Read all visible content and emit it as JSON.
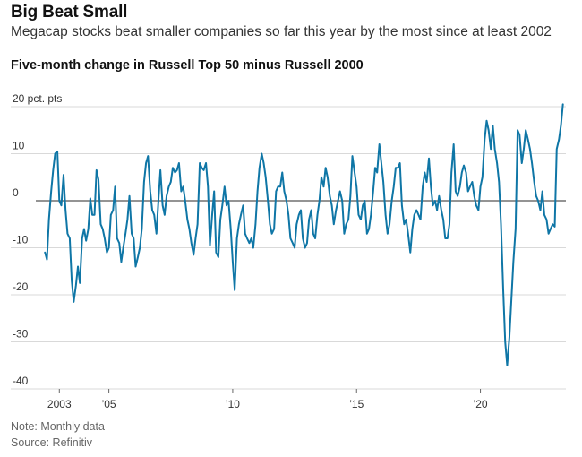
{
  "header": {
    "title": "Big Beat Small",
    "subtitle": "Megacap stocks beat smaller companies so far this year by the most since at least 2002"
  },
  "chart_title": "Five-month change in Russell Top 50 minus Russell 2000",
  "notes": {
    "note": "Note: Monthly data",
    "source": "Source: Refinitiv"
  },
  "colors": {
    "line": "#0f76a6",
    "grid": "#d9d9d9",
    "zero_line": "#555555"
  },
  "chart_data": {
    "type": "line",
    "title": "Five-month change in Russell Top 50 minus Russell 2000",
    "xlabel": "",
    "ylabel": "",
    "xlim": [
      2002.05,
      2023.45
    ],
    "ylim": [
      -40,
      20
    ],
    "grid": true,
    "y_ticks": [
      {
        "value": 20,
        "label": "20 pct. pts"
      },
      {
        "value": 10,
        "label": "10"
      },
      {
        "value": 0,
        "label": "0"
      },
      {
        "value": -10,
        "label": "-10"
      },
      {
        "value": -20,
        "label": "-20"
      },
      {
        "value": -30,
        "label": "-30"
      },
      {
        "value": -40,
        "label": "-40"
      }
    ],
    "x_ticks": [
      {
        "value": 2003,
        "label": "2003"
      },
      {
        "value": 2005,
        "label": "’05"
      },
      {
        "value": 2010,
        "label": "’10"
      },
      {
        "value": 2015,
        "label": "’15"
      },
      {
        "value": 2020,
        "label": "’20"
      }
    ],
    "series": [
      {
        "points": [
          [
            2002.42,
            -11
          ],
          [
            2002.5,
            -12.5
          ],
          [
            2002.58,
            -4
          ],
          [
            2002.67,
            2
          ],
          [
            2002.75,
            6.5
          ],
          [
            2002.83,
            10
          ],
          [
            2002.92,
            10.5
          ],
          [
            2003.0,
            0
          ],
          [
            2003.08,
            -1
          ],
          [
            2003.17,
            5.5
          ],
          [
            2003.25,
            -2
          ],
          [
            2003.33,
            -7
          ],
          [
            2003.42,
            -8
          ],
          [
            2003.5,
            -17
          ],
          [
            2003.58,
            -21.5
          ],
          [
            2003.67,
            -18
          ],
          [
            2003.75,
            -14
          ],
          [
            2003.83,
            -17.5
          ],
          [
            2003.92,
            -8
          ],
          [
            2004.0,
            -6
          ],
          [
            2004.08,
            -8.5
          ],
          [
            2004.17,
            -6
          ],
          [
            2004.25,
            0.5
          ],
          [
            2004.33,
            -3
          ],
          [
            2004.42,
            -3
          ],
          [
            2004.5,
            6.5
          ],
          [
            2004.58,
            4.5
          ],
          [
            2004.67,
            -5
          ],
          [
            2004.75,
            -6
          ],
          [
            2004.83,
            -8
          ],
          [
            2004.92,
            -11
          ],
          [
            2005.0,
            -10
          ],
          [
            2005.08,
            -3
          ],
          [
            2005.17,
            -2
          ],
          [
            2005.25,
            3
          ],
          [
            2005.33,
            -8
          ],
          [
            2005.42,
            -9
          ],
          [
            2005.5,
            -13
          ],
          [
            2005.58,
            -10
          ],
          [
            2005.67,
            -7
          ],
          [
            2005.75,
            -4
          ],
          [
            2005.83,
            1
          ],
          [
            2005.92,
            -7
          ],
          [
            2006.0,
            -8
          ],
          [
            2006.08,
            -14
          ],
          [
            2006.17,
            -12
          ],
          [
            2006.25,
            -10
          ],
          [
            2006.33,
            -6
          ],
          [
            2006.42,
            4
          ],
          [
            2006.5,
            8
          ],
          [
            2006.58,
            9.5
          ],
          [
            2006.67,
            2
          ],
          [
            2006.75,
            -2
          ],
          [
            2006.83,
            -3
          ],
          [
            2006.92,
            -7
          ],
          [
            2007.0,
            0
          ],
          [
            2007.08,
            6.5
          ],
          [
            2007.17,
            -1
          ],
          [
            2007.25,
            -3
          ],
          [
            2007.33,
            1
          ],
          [
            2007.42,
            3
          ],
          [
            2007.5,
            4
          ],
          [
            2007.58,
            7
          ],
          [
            2007.67,
            6
          ],
          [
            2007.75,
            6.5
          ],
          [
            2007.83,
            8
          ],
          [
            2007.92,
            2
          ],
          [
            2008.0,
            3
          ],
          [
            2008.08,
            0
          ],
          [
            2008.17,
            -4
          ],
          [
            2008.25,
            -6
          ],
          [
            2008.33,
            -9
          ],
          [
            2008.42,
            -11.5
          ],
          [
            2008.5,
            -8
          ],
          [
            2008.58,
            -5
          ],
          [
            2008.67,
            8
          ],
          [
            2008.75,
            7
          ],
          [
            2008.83,
            6.5
          ],
          [
            2008.92,
            8
          ],
          [
            2009.0,
            3
          ],
          [
            2009.08,
            -9.5
          ],
          [
            2009.17,
            -3
          ],
          [
            2009.25,
            2
          ],
          [
            2009.33,
            -11
          ],
          [
            2009.42,
            -12
          ],
          [
            2009.5,
            -4
          ],
          [
            2009.58,
            -1
          ],
          [
            2009.67,
            3
          ],
          [
            2009.75,
            -1
          ],
          [
            2009.83,
            0
          ],
          [
            2009.92,
            -6
          ],
          [
            2010.0,
            -13
          ],
          [
            2010.08,
            -19
          ],
          [
            2010.17,
            -8
          ],
          [
            2010.25,
            -5
          ],
          [
            2010.33,
            -3
          ],
          [
            2010.42,
            -1
          ],
          [
            2010.5,
            -7
          ],
          [
            2010.58,
            -8
          ],
          [
            2010.67,
            -9
          ],
          [
            2010.75,
            -8
          ],
          [
            2010.83,
            -10
          ],
          [
            2010.92,
            -5
          ],
          [
            2011.0,
            2
          ],
          [
            2011.08,
            7
          ],
          [
            2011.17,
            10
          ],
          [
            2011.25,
            8
          ],
          [
            2011.33,
            5
          ],
          [
            2011.42,
            0
          ],
          [
            2011.5,
            -5
          ],
          [
            2011.58,
            -7
          ],
          [
            2011.67,
            -6
          ],
          [
            2011.75,
            2
          ],
          [
            2011.83,
            3
          ],
          [
            2011.92,
            3
          ],
          [
            2012.0,
            6
          ],
          [
            2012.08,
            2
          ],
          [
            2012.17,
            0
          ],
          [
            2012.25,
            -3
          ],
          [
            2012.33,
            -8
          ],
          [
            2012.42,
            -9
          ],
          [
            2012.5,
            -10
          ],
          [
            2012.58,
            -5
          ],
          [
            2012.67,
            -3
          ],
          [
            2012.75,
            -2
          ],
          [
            2012.83,
            -8
          ],
          [
            2012.92,
            -10
          ],
          [
            2013.0,
            -9
          ],
          [
            2013.08,
            -4
          ],
          [
            2013.17,
            -2
          ],
          [
            2013.25,
            -7
          ],
          [
            2013.33,
            -8
          ],
          [
            2013.42,
            -3
          ],
          [
            2013.5,
            0
          ],
          [
            2013.58,
            5
          ],
          [
            2013.67,
            3
          ],
          [
            2013.75,
            7
          ],
          [
            2013.83,
            5
          ],
          [
            2013.92,
            1
          ],
          [
            2014.0,
            -1
          ],
          [
            2014.08,
            -5
          ],
          [
            2014.17,
            -2
          ],
          [
            2014.25,
            0
          ],
          [
            2014.33,
            2
          ],
          [
            2014.42,
            0
          ],
          [
            2014.5,
            -7
          ],
          [
            2014.58,
            -5
          ],
          [
            2014.67,
            -4
          ],
          [
            2014.75,
            1
          ],
          [
            2014.83,
            9.5
          ],
          [
            2014.92,
            6
          ],
          [
            2015.0,
            3
          ],
          [
            2015.08,
            -3
          ],
          [
            2015.17,
            -4
          ],
          [
            2015.25,
            -1
          ],
          [
            2015.33,
            0
          ],
          [
            2015.42,
            -7
          ],
          [
            2015.5,
            -6
          ],
          [
            2015.58,
            -3
          ],
          [
            2015.67,
            2
          ],
          [
            2015.75,
            7
          ],
          [
            2015.83,
            6
          ],
          [
            2015.92,
            12
          ],
          [
            2016.0,
            8
          ],
          [
            2016.08,
            4
          ],
          [
            2016.17,
            -3
          ],
          [
            2016.25,
            -7
          ],
          [
            2016.33,
            -5
          ],
          [
            2016.42,
            0
          ],
          [
            2016.5,
            3
          ],
          [
            2016.58,
            7
          ],
          [
            2016.67,
            7
          ],
          [
            2016.75,
            8
          ],
          [
            2016.83,
            -1
          ],
          [
            2016.92,
            -5
          ],
          [
            2017.0,
            -4
          ],
          [
            2017.08,
            -7
          ],
          [
            2017.17,
            -11
          ],
          [
            2017.25,
            -6
          ],
          [
            2017.33,
            -3
          ],
          [
            2017.42,
            -2
          ],
          [
            2017.5,
            -3
          ],
          [
            2017.58,
            -4
          ],
          [
            2017.67,
            3
          ],
          [
            2017.75,
            6
          ],
          [
            2017.83,
            4
          ],
          [
            2017.92,
            9
          ],
          [
            2018.0,
            3
          ],
          [
            2018.08,
            -1
          ],
          [
            2018.17,
            0
          ],
          [
            2018.25,
            -2
          ],
          [
            2018.33,
            1
          ],
          [
            2018.42,
            -2
          ],
          [
            2018.5,
            -4
          ],
          [
            2018.58,
            -8
          ],
          [
            2018.67,
            -8
          ],
          [
            2018.75,
            -5
          ],
          [
            2018.83,
            6
          ],
          [
            2018.92,
            12
          ],
          [
            2019.0,
            2
          ],
          [
            2019.08,
            1
          ],
          [
            2019.17,
            3
          ],
          [
            2019.25,
            6
          ],
          [
            2019.33,
            7.5
          ],
          [
            2019.42,
            6
          ],
          [
            2019.5,
            2
          ],
          [
            2019.58,
            3
          ],
          [
            2019.67,
            4
          ],
          [
            2019.75,
            1
          ],
          [
            2019.83,
            -1
          ],
          [
            2019.92,
            -2
          ],
          [
            2020.0,
            3
          ],
          [
            2020.08,
            5
          ],
          [
            2020.17,
            13
          ],
          [
            2020.25,
            17
          ],
          [
            2020.33,
            15
          ],
          [
            2020.42,
            11
          ],
          [
            2020.5,
            16
          ],
          [
            2020.58,
            11
          ],
          [
            2020.67,
            8
          ],
          [
            2020.75,
            4
          ],
          [
            2020.83,
            -5
          ],
          [
            2020.92,
            -19
          ],
          [
            2021.0,
            -30
          ],
          [
            2021.08,
            -35
          ],
          [
            2021.17,
            -29
          ],
          [
            2021.25,
            -21
          ],
          [
            2021.33,
            -13
          ],
          [
            2021.42,
            -6
          ],
          [
            2021.5,
            15
          ],
          [
            2021.58,
            14
          ],
          [
            2021.67,
            8
          ],
          [
            2021.75,
            11
          ],
          [
            2021.83,
            15
          ],
          [
            2021.92,
            13
          ],
          [
            2022.0,
            11
          ],
          [
            2022.08,
            8
          ],
          [
            2022.17,
            4
          ],
          [
            2022.25,
            1
          ],
          [
            2022.33,
            0
          ],
          [
            2022.42,
            -2
          ],
          [
            2022.5,
            2
          ],
          [
            2022.58,
            -3
          ],
          [
            2022.67,
            -4
          ],
          [
            2022.75,
            -7
          ],
          [
            2022.83,
            -6
          ],
          [
            2022.92,
            -5
          ],
          [
            2023.0,
            -5.5
          ],
          [
            2023.08,
            11
          ],
          [
            2023.17,
            13
          ],
          [
            2023.25,
            16
          ],
          [
            2023.33,
            20.5
          ]
        ]
      }
    ]
  }
}
